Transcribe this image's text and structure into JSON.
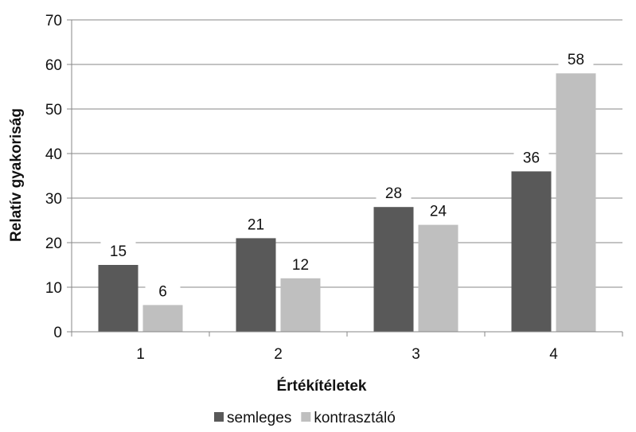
{
  "chart_data": {
    "type": "bar",
    "categories": [
      "1",
      "2",
      "3",
      "4"
    ],
    "series": [
      {
        "name": "semleges",
        "values": [
          15,
          21,
          28,
          36
        ],
        "color": "#595959"
      },
      {
        "name": "kontrasztáló",
        "values": [
          6,
          12,
          24,
          58
        ],
        "color": "#bfbfbf"
      }
    ],
    "title": "",
    "xlabel": "Értékítéletek",
    "ylabel": "Relatív gyakoriság",
    "ylim": [
      0,
      70
    ],
    "yticks": [
      "0",
      "10",
      "20",
      "30",
      "40",
      "50",
      "60",
      "70"
    ],
    "grid": true,
    "legend": "bottom",
    "data_labels": true,
    "gridline_color": "#878787",
    "axis_color": "#878787"
  }
}
